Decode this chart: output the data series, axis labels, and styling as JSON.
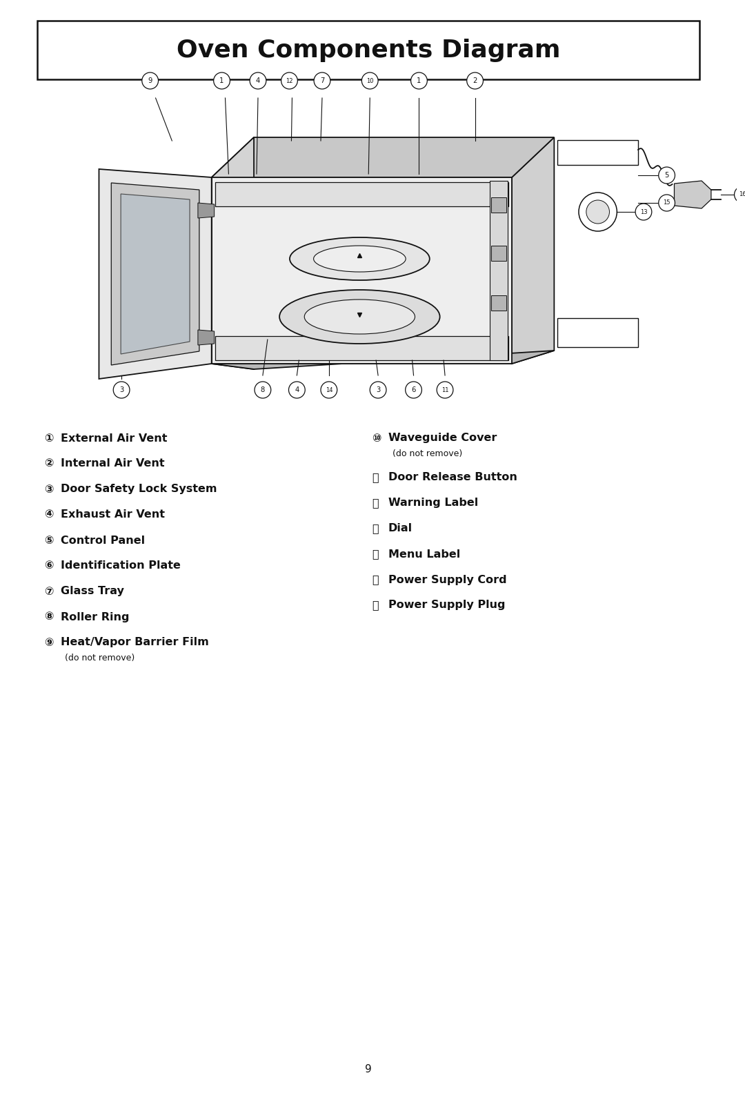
{
  "title": "Oven Components Diagram",
  "title_fontsize": 26,
  "bg_color": "#ffffff",
  "border_color": "#111111",
  "text_color": "#111111",
  "page_number": "9",
  "left_items": [
    {
      "num": "①",
      "label": "External Air Vent",
      "sub": null
    },
    {
      "num": "②",
      "label": "Internal Air Vent",
      "sub": null
    },
    {
      "num": "③",
      "label": "Door Safety Lock System",
      "sub": null
    },
    {
      "num": "④",
      "label": "Exhaust Air Vent",
      "sub": null
    },
    {
      "num": "⑤",
      "label": "Control Panel",
      "sub": null
    },
    {
      "num": "⑥",
      "label": "Identification Plate",
      "sub": null
    },
    {
      "num": "⑦",
      "label": "Glass Tray",
      "sub": null
    },
    {
      "num": "⑧",
      "label": "Roller Ring",
      "sub": null
    },
    {
      "num": "⑨",
      "label": "Heat/Vapor Barrier Film",
      "sub": "(do not remove)"
    }
  ],
  "right_items": [
    {
      "num": "⑩",
      "label": "Waveguide Cover",
      "sub": "(do not remove)"
    },
    {
      "num": "⑪",
      "label": "Door Release Button",
      "sub": null
    },
    {
      "num": "⑫",
      "label": "Warning Label",
      "sub": null
    },
    {
      "num": "⑬",
      "label": "Dial",
      "sub": null
    },
    {
      "num": "⑭",
      "label": "Menu Label",
      "sub": null
    },
    {
      "num": "⑮",
      "label": "Power Supply Cord",
      "sub": null
    },
    {
      "num": "⑯",
      "label": "Power Supply Plug",
      "sub": null
    }
  ]
}
